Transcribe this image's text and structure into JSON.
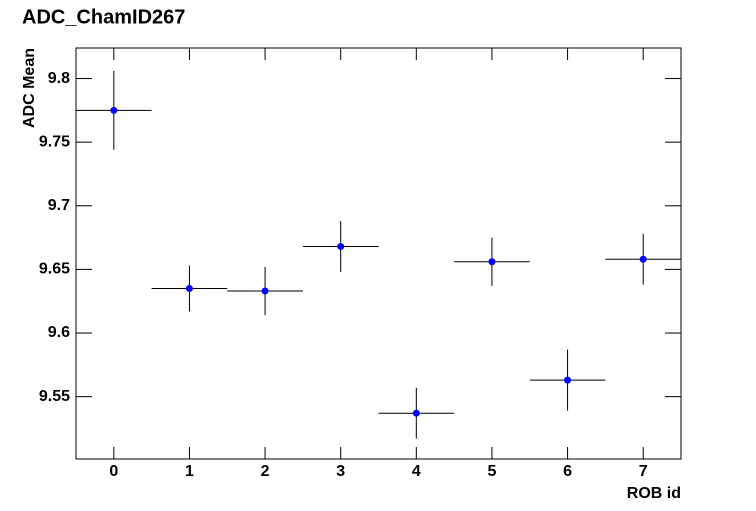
{
  "chart_data": {
    "type": "errorbar",
    "title": "ADC_ChamID267",
    "xlabel": "ROB id",
    "ylabel": "ADC Mean",
    "x": [
      0,
      1,
      2,
      3,
      4,
      5,
      6,
      7
    ],
    "values": [
      9.775,
      9.635,
      9.633,
      9.668,
      9.537,
      9.656,
      9.563,
      9.658
    ],
    "errors": [
      0.031,
      0.018,
      0.019,
      0.02,
      0.02,
      0.019,
      0.024,
      0.02
    ],
    "xerr": [
      0.5,
      0.5,
      0.5,
      0.5,
      0.5,
      0.5,
      0.5,
      0.5
    ],
    "color": "#0000ff",
    "xlim": [
      -0.5,
      7.5
    ],
    "xticks": [
      0,
      1,
      2,
      3,
      4,
      5,
      6,
      7
    ],
    "ylim": [
      9.501,
      9.824
    ],
    "yticks": [
      9.55,
      9.6,
      9.65,
      9.7,
      9.75,
      9.8
    ]
  }
}
